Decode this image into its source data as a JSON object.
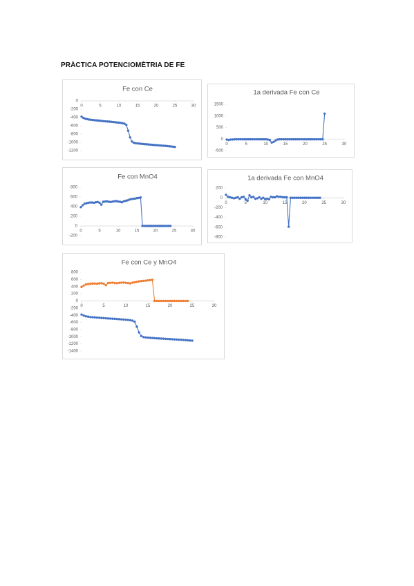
{
  "heading": "PRÀCTICA POTENCIOMÈTRIA DE FE",
  "chart_data": [
    {
      "type": "line",
      "title": "Fe con Ce",
      "x": [
        0,
        0.5,
        1,
        1.5,
        2,
        2.5,
        3,
        3.5,
        4,
        4.5,
        5,
        5.5,
        6,
        6.5,
        7,
        7.5,
        8,
        8.5,
        9,
        9.5,
        10,
        10.5,
        11,
        11.5,
        12,
        12.5,
        13,
        13.5,
        14,
        14.5,
        15,
        15.5,
        16,
        16.5,
        17,
        17.5,
        18,
        18.5,
        19,
        19.5,
        20,
        20.5,
        21,
        21.5,
        22,
        22.5,
        23,
        23.5,
        24,
        24.5,
        25
      ],
      "series": [
        {
          "color": "#4472c4",
          "values": [
            -380,
            -410,
            -430,
            -440,
            -450,
            -455,
            -460,
            -465,
            -470,
            -475,
            -480,
            -485,
            -490,
            -493,
            -497,
            -500,
            -505,
            -510,
            -515,
            -520,
            -525,
            -530,
            -540,
            -550,
            -580,
            -720,
            -880,
            -980,
            -1010,
            -1020,
            -1025,
            -1030,
            -1035,
            -1040,
            -1045,
            -1048,
            -1052,
            -1055,
            -1060,
            -1063,
            -1067,
            -1070,
            -1075,
            -1078,
            -1082,
            -1085,
            -1090,
            -1095,
            -1100,
            -1105,
            -1110
          ]
        }
      ],
      "xlim": [
        0,
        30
      ],
      "xticks": [
        0,
        5,
        10,
        15,
        20,
        25,
        30
      ],
      "ylim": [
        -1200,
        0
      ],
      "yticks": [
        0,
        -200,
        -400,
        -600,
        -800,
        -1000,
        -1200
      ]
    },
    {
      "type": "line",
      "title": "1a derivada Fe con Ce",
      "x": [
        0,
        0.5,
        1,
        1.5,
        2,
        2.5,
        3,
        3.5,
        4,
        4.5,
        5,
        5.5,
        6,
        6.5,
        7,
        7.5,
        8,
        8.5,
        9,
        9.5,
        10,
        10.5,
        11,
        11.5,
        12,
        12.5,
        13,
        13.5,
        14,
        14.5,
        15,
        15.5,
        16,
        16.5,
        17,
        17.5,
        18,
        18.5,
        19,
        19.5,
        20,
        20.5,
        21,
        21.5,
        22,
        22.5,
        23,
        23.5,
        24,
        24.5,
        25
      ],
      "series": [
        {
          "color": "#4472c4",
          "values": [
            -20,
            -40,
            -20,
            -20,
            -10,
            -10,
            -10,
            -10,
            -10,
            -10,
            -10,
            -10,
            -10,
            -10,
            -10,
            -10,
            -10,
            -10,
            -10,
            -10,
            -10,
            -20,
            -40,
            -150,
            -120,
            -60,
            -20,
            -10,
            -10,
            -10,
            -10,
            -10,
            -10,
            -10,
            -10,
            -10,
            -10,
            -10,
            -10,
            -10,
            -10,
            -10,
            -10,
            -10,
            -10,
            -10,
            -10,
            -10,
            -10,
            -10,
            1100
          ]
        }
      ],
      "xlim": [
        0,
        30
      ],
      "xticks": [
        0,
        5,
        10,
        15,
        20,
        25,
        30
      ],
      "ylim": [
        -500,
        1500
      ],
      "yticks": [
        1500,
        1000,
        500,
        0,
        -500
      ]
    },
    {
      "type": "line",
      "title": "Fe con MnO4",
      "x": [
        0,
        0.5,
        1,
        1.5,
        2,
        2.5,
        3,
        3.5,
        4,
        4.5,
        5,
        5.5,
        6,
        6.5,
        7,
        7.5,
        8,
        8.5,
        9,
        9.5,
        10,
        10.5,
        11,
        11.5,
        12,
        12.5,
        13,
        13.5,
        14,
        14.5,
        15,
        15.5,
        16,
        16.5,
        17,
        17.5,
        18,
        18.5,
        19,
        19.5,
        20,
        20.5,
        21,
        21.5,
        22,
        22.5,
        23,
        23.5,
        24
      ],
      "series": [
        {
          "color": "#4472c4",
          "values": [
            390,
            430,
            460,
            470,
            480,
            485,
            485,
            480,
            490,
            495,
            480,
            440,
            500,
            505,
            510,
            500,
            495,
            505,
            510,
            515,
            505,
            500,
            490,
            510,
            520,
            530,
            545,
            555,
            560,
            565,
            575,
            580,
            590,
            0,
            0,
            0,
            0,
            0,
            0,
            0,
            0,
            0,
            0,
            0,
            0,
            0,
            0,
            0,
            0
          ]
        }
      ],
      "xlim": [
        0,
        30
      ],
      "xticks": [
        0,
        5,
        10,
        15,
        20,
        25,
        30
      ],
      "ylim": [
        -200,
        800
      ],
      "yticks": [
        800,
        600,
        400,
        200,
        0,
        -200
      ]
    },
    {
      "type": "line",
      "title": "1a derivada Fe con MnO4",
      "x": [
        0,
        0.5,
        1,
        1.5,
        2,
        2.5,
        3,
        3.5,
        4,
        4.5,
        5,
        5.5,
        6,
        6.5,
        7,
        7.5,
        8,
        8.5,
        9,
        9.5,
        10,
        10.5,
        11,
        11.5,
        12,
        12.5,
        13,
        13.5,
        14,
        14.5,
        15,
        15.5,
        16,
        16.5,
        17,
        17.5,
        18,
        18.5,
        19,
        19.5,
        20,
        20.5,
        21,
        21.5,
        22,
        22.5,
        23,
        23.5,
        24
      ],
      "series": [
        {
          "color": "#4472c4",
          "values": [
            60,
            20,
            10,
            0,
            -10,
            0,
            10,
            -20,
            10,
            20,
            -30,
            -60,
            50,
            10,
            20,
            -20,
            -10,
            10,
            -20,
            0,
            -30,
            -20,
            -30,
            20,
            10,
            10,
            30,
            20,
            20,
            10,
            10,
            10,
            -590,
            0,
            0,
            0,
            0,
            0,
            0,
            0,
            0,
            0,
            0,
            0,
            0,
            0,
            0,
            0,
            0
          ]
        }
      ],
      "xlim": [
        0,
        30
      ],
      "xticks": [
        0,
        5,
        10,
        15,
        20,
        25,
        30
      ],
      "ylim": [
        -800,
        200
      ],
      "yticks": [
        200,
        0,
        -200,
        -400,
        -600,
        -800
      ]
    },
    {
      "type": "line",
      "title": "Fe con Ce y MnO4",
      "x": [
        0,
        0.5,
        1,
        1.5,
        2,
        2.5,
        3,
        3.5,
        4,
        4.5,
        5,
        5.5,
        6,
        6.5,
        7,
        7.5,
        8,
        8.5,
        9,
        9.5,
        10,
        10.5,
        11,
        11.5,
        12,
        12.5,
        13,
        13.5,
        14,
        14.5,
        15,
        15.5,
        16,
        16.5,
        17,
        17.5,
        18,
        18.5,
        19,
        19.5,
        20,
        20.5,
        21,
        21.5,
        22,
        22.5,
        23,
        23.5,
        24,
        24.5,
        25
      ],
      "series": [
        {
          "color": "#4472c4",
          "values": [
            -380,
            -410,
            -430,
            -440,
            -450,
            -455,
            -460,
            -465,
            -470,
            -475,
            -480,
            -485,
            -490,
            -493,
            -497,
            -500,
            -505,
            -510,
            -515,
            -520,
            -525,
            -530,
            -540,
            -550,
            -580,
            -720,
            -880,
            -980,
            -1010,
            -1020,
            -1025,
            -1030,
            -1035,
            -1040,
            -1045,
            -1048,
            -1052,
            -1055,
            -1060,
            -1063,
            -1067,
            -1070,
            -1075,
            -1078,
            -1082,
            -1085,
            -1090,
            -1095,
            -1100,
            -1105,
            -1110
          ]
        },
        {
          "color": "#ed7d31",
          "values": [
            390,
            430,
            460,
            470,
            480,
            485,
            485,
            480,
            490,
            495,
            480,
            440,
            500,
            505,
            510,
            500,
            495,
            505,
            510,
            515,
            505,
            500,
            490,
            510,
            520,
            530,
            545,
            555,
            560,
            565,
            575,
            580,
            590,
            0,
            0,
            0,
            0,
            0,
            0,
            0,
            0,
            0,
            0,
            0,
            0,
            0,
            0,
            0,
            0,
            null,
            null
          ]
        }
      ],
      "xlim": [
        0,
        30
      ],
      "xticks": [
        0,
        5,
        10,
        15,
        20,
        25,
        30
      ],
      "ylim": [
        -1400,
        800
      ],
      "yticks": [
        800,
        600,
        400,
        200,
        0,
        -200,
        -400,
        -600,
        -800,
        -1000,
        -1200,
        -1400
      ]
    }
  ]
}
